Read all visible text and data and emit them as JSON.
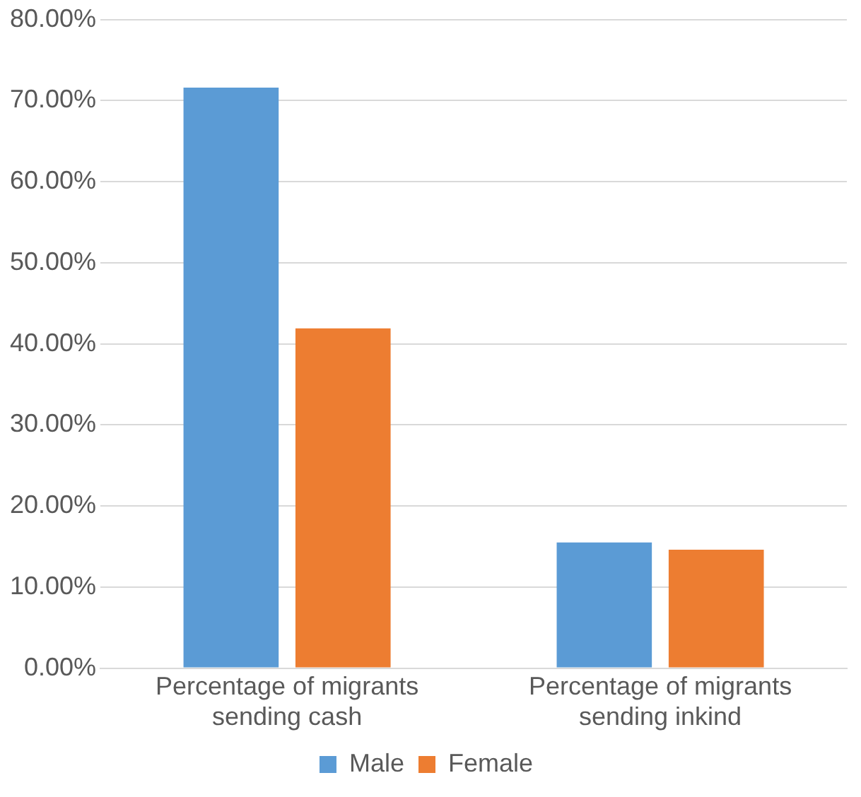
{
  "chart_data": {
    "type": "bar",
    "categories": [
      "Percentage of migrants sending cash",
      "Percentage of migrants sending inkind"
    ],
    "series": [
      {
        "name": "Male",
        "color": "#5b9bd5",
        "values": [
          71.6,
          15.5
        ]
      },
      {
        "name": "Female",
        "color": "#ed7d31",
        "values": [
          41.9,
          14.6
        ]
      }
    ],
    "ylim": [
      0,
      80
    ],
    "yticks": [
      {
        "value": 0,
        "label": "0.00%"
      },
      {
        "value": 10,
        "label": "10.00%"
      },
      {
        "value": 20,
        "label": "20.00%"
      },
      {
        "value": 30,
        "label": "30.00%"
      },
      {
        "value": 40,
        "label": "40.00%"
      },
      {
        "value": 50,
        "label": "50.00%"
      },
      {
        "value": 60,
        "label": "60.00%"
      },
      {
        "value": 70,
        "label": "70.00%"
      },
      {
        "value": 80,
        "label": "80.00%"
      }
    ],
    "grid": "y",
    "legend": "bottom"
  }
}
